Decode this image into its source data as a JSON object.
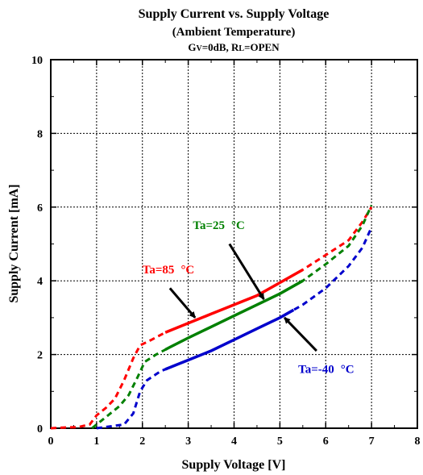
{
  "chart_data": {
    "type": "line",
    "title": "Supply Current vs. Supply Voltage",
    "subtitle": "(Ambient Temperature)",
    "conditions": {
      "gv_main": "G",
      "gv_sub": "V",
      "gv_value": "=0dB, ",
      "rl_main": "R",
      "rl_sub": "L",
      "rl_value": "=OPEN"
    },
    "xlabel": "Supply Voltage [V]",
    "ylabel": "Supply Current [mA]",
    "xlim": [
      0,
      8
    ],
    "ylim": [
      0,
      10
    ],
    "x_ticks": [
      "0",
      "1",
      "2",
      "3",
      "4",
      "5",
      "6",
      "7",
      "8"
    ],
    "y_ticks": [
      "0",
      "2",
      "4",
      "6",
      "8",
      "10"
    ],
    "grid": true,
    "series": [
      {
        "name": "Ta=85 °C",
        "label_main": "Ta=85",
        "label_unit": "°C",
        "color": "#ff0000",
        "points": [
          [
            0,
            0
          ],
          [
            0.3,
            0.02
          ],
          [
            0.6,
            0.03
          ],
          [
            0.85,
            0.1
          ],
          [
            1.0,
            0.35
          ],
          [
            1.2,
            0.55
          ],
          [
            1.4,
            0.8
          ],
          [
            1.6,
            1.3
          ],
          [
            1.8,
            1.9
          ],
          [
            1.95,
            2.25
          ],
          [
            2.2,
            2.4
          ],
          [
            2.5,
            2.6
          ],
          [
            3.0,
            2.85
          ],
          [
            3.5,
            3.1
          ],
          [
            4.0,
            3.35
          ],
          [
            4.5,
            3.6
          ],
          [
            5.0,
            3.95
          ],
          [
            5.5,
            4.3
          ],
          [
            6.0,
            4.7
          ],
          [
            6.5,
            5.1
          ],
          [
            6.8,
            5.6
          ],
          [
            7.0,
            6.0
          ]
        ],
        "solid_range": [
          2.5,
          5.5
        ]
      },
      {
        "name": "Ta=25 °C",
        "label_main": "Ta=25",
        "label_unit": "°C",
        "color": "#008000",
        "points": [
          [
            0.9,
            0
          ],
          [
            1.0,
            0.1
          ],
          [
            1.2,
            0.3
          ],
          [
            1.5,
            0.6
          ],
          [
            1.7,
            0.9
          ],
          [
            1.9,
            1.4
          ],
          [
            2.05,
            1.8
          ],
          [
            2.3,
            2.0
          ],
          [
            2.6,
            2.2
          ],
          [
            3.0,
            2.45
          ],
          [
            3.5,
            2.75
          ],
          [
            4.0,
            3.05
          ],
          [
            4.5,
            3.35
          ],
          [
            5.0,
            3.65
          ],
          [
            5.5,
            4.0
          ],
          [
            6.0,
            4.45
          ],
          [
            6.5,
            4.95
          ],
          [
            6.8,
            5.5
          ],
          [
            7.0,
            6.05
          ]
        ],
        "solid_range": [
          2.5,
          5.5
        ]
      },
      {
        "name": "Ta=-40 °C",
        "label_main": "Ta=-40",
        "label_unit": "°C",
        "color": "#0000cc",
        "points": [
          [
            1.0,
            0
          ],
          [
            1.3,
            0.05
          ],
          [
            1.6,
            0.1
          ],
          [
            1.8,
            0.4
          ],
          [
            1.95,
            1.0
          ],
          [
            2.1,
            1.3
          ],
          [
            2.4,
            1.55
          ],
          [
            2.8,
            1.75
          ],
          [
            3.0,
            1.85
          ],
          [
            3.5,
            2.1
          ],
          [
            4.0,
            2.4
          ],
          [
            4.5,
            2.7
          ],
          [
            5.0,
            3.0
          ],
          [
            5.5,
            3.35
          ],
          [
            6.0,
            3.8
          ],
          [
            6.5,
            4.4
          ],
          [
            6.8,
            4.9
          ],
          [
            7.0,
            5.45
          ]
        ],
        "solid_range": [
          2.5,
          5.3
        ]
      }
    ],
    "annotations": [
      {
        "series": 0,
        "text_pos": [
          2.0,
          4.2
        ],
        "arrow_from": [
          2.6,
          3.8
        ],
        "arrow_to": [
          3.15,
          3.0
        ]
      },
      {
        "series": 1,
        "text_pos": [
          3.1,
          5.4
        ],
        "arrow_from": [
          3.9,
          5.0
        ],
        "arrow_to": [
          4.65,
          3.5
        ]
      },
      {
        "series": 2,
        "text_pos": [
          5.4,
          1.5
        ],
        "arrow_from": [
          5.8,
          2.1
        ],
        "arrow_to": [
          5.1,
          3.0
        ]
      }
    ]
  }
}
